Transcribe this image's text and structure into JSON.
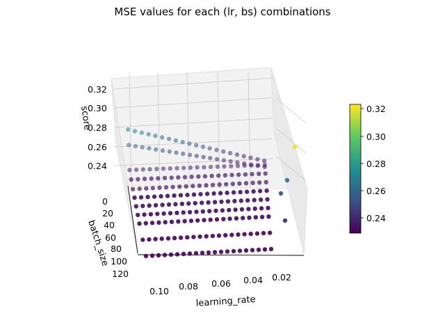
{
  "chart_data": {
    "type": "scatter",
    "subtype": "3d",
    "title": "MSE values for each (lr, bs) combinations",
    "xlabel": "learning_rate",
    "ylabel": "batch_size",
    "zlabel": "score",
    "x_ticks": [
      "0.10",
      "0.08",
      "0.06",
      "0.04",
      "0.02"
    ],
    "y_ticks": [
      "0",
      "20",
      "40",
      "60",
      "80",
      "100",
      "120"
    ],
    "z_ticks": [
      "0.24",
      "0.26",
      "0.28",
      "0.30",
      "0.32"
    ],
    "colorbar_ticks": [
      "0.24",
      "0.26",
      "0.28",
      "0.30",
      "0.32"
    ],
    "colormap": "viridis",
    "zlim": [
      0.23,
      0.325
    ],
    "grid": true,
    "colorbar": "right",
    "series": [
      {
        "batch_size": 1,
        "learning_rate_range": [
          0.11,
          0.015
        ],
        "score_range": [
          0.275,
          0.235
        ]
      },
      {
        "batch_size": 5,
        "learning_rate_range": [
          0.11,
          0.015
        ],
        "score_range": [
          0.262,
          0.232
        ]
      },
      {
        "batch_size": 10,
        "learning_rate_range": [
          0.11,
          0.015
        ],
        "score_range": [
          0.24,
          0.238
        ]
      },
      {
        "batch_size": 20,
        "learning_rate_range": [
          0.11,
          0.015
        ],
        "score_range": [
          0.238,
          0.237
        ]
      },
      {
        "batch_size": 30,
        "learning_rate_range": [
          0.11,
          0.015
        ],
        "score_range": [
          0.236,
          0.236
        ]
      },
      {
        "batch_size": 40,
        "learning_rate_range": [
          0.11,
          0.015
        ],
        "score_range": [
          0.235,
          0.235
        ]
      },
      {
        "batch_size": 50,
        "learning_rate_range": [
          0.11,
          0.015
        ],
        "score_range": [
          0.234,
          0.234
        ]
      },
      {
        "batch_size": 60,
        "learning_rate_range": [
          0.11,
          0.015
        ],
        "score_range": [
          0.233,
          0.233
        ]
      },
      {
        "batch_size": 70,
        "learning_rate_range": [
          0.11,
          0.015
        ],
        "score_range": [
          0.232,
          0.232
        ]
      },
      {
        "batch_size": 90,
        "learning_rate_range": [
          0.11,
          0.015
        ],
        "score_range": [
          0.231,
          0.231
        ]
      },
      {
        "batch_size": 110,
        "learning_rate_range": [
          0.11,
          0.015
        ],
        "score_range": [
          0.23,
          0.23
        ]
      }
    ],
    "outliers": [
      {
        "learning_rate": 0.005,
        "batch_size": 1,
        "score": 0.322
      },
      {
        "learning_rate": 0.005,
        "batch_size": 5,
        "score": 0.27
      },
      {
        "learning_rate": 0.005,
        "batch_size": 10,
        "score": 0.254
      },
      {
        "learning_rate": 0.005,
        "batch_size": 20,
        "score": 0.245
      }
    ]
  }
}
